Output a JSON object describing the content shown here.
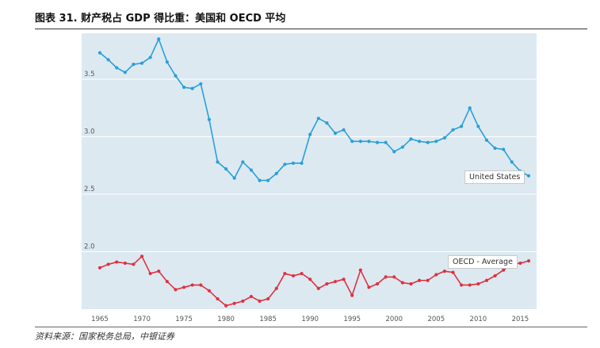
{
  "figure": {
    "title": "图表 31. 财产税占 GDP 得比重：美国和 OECD 平均",
    "source": "资料来源：国家税务总局，中银证券"
  },
  "chart_data": {
    "type": "line",
    "xlim": [
      1965,
      2016
    ],
    "ylim": [
      1.5,
      3.95
    ],
    "yticks": [
      2.0,
      2.5,
      3.0,
      3.5
    ],
    "ytick_labels": [
      "2.0",
      "2.5",
      "3.0",
      "3.5"
    ],
    "xticks": [
      1965,
      1970,
      1975,
      1980,
      1985,
      1990,
      1995,
      2000,
      2005,
      2010,
      2015
    ],
    "xtick_labels": [
      "1965",
      "1970",
      "1975",
      "1980",
      "1985",
      "1990",
      "1995",
      "2000",
      "2005",
      "2010",
      "2015"
    ],
    "grid": true,
    "x": [
      1965,
      1966,
      1967,
      1968,
      1969,
      1970,
      1971,
      1972,
      1973,
      1974,
      1975,
      1976,
      1977,
      1978,
      1979,
      1980,
      1981,
      1982,
      1983,
      1984,
      1985,
      1986,
      1987,
      1988,
      1989,
      1990,
      1991,
      1992,
      1993,
      1994,
      1995,
      1996,
      1997,
      1998,
      1999,
      2000,
      2001,
      2002,
      2003,
      2004,
      2005,
      2006,
      2007,
      2008,
      2009,
      2010,
      2011,
      2012,
      2013,
      2014,
      2015,
      2016
    ],
    "series": [
      {
        "name": "United States",
        "color": "#2a9fd8",
        "values": [
          3.73,
          3.67,
          3.6,
          3.56,
          3.63,
          3.64,
          3.69,
          3.85,
          3.65,
          3.53,
          3.43,
          3.42,
          3.46,
          3.15,
          2.78,
          2.72,
          2.64,
          2.78,
          2.71,
          2.62,
          2.62,
          2.68,
          2.76,
          2.77,
          2.77,
          3.02,
          3.16,
          3.12,
          3.03,
          3.06,
          2.96,
          2.96,
          2.96,
          2.95,
          2.95,
          2.87,
          2.91,
          2.98,
          2.96,
          2.95,
          2.96,
          2.99,
          3.06,
          3.09,
          3.25,
          3.09,
          2.97,
          2.9,
          2.89,
          2.78,
          2.7,
          2.66
        ]
      },
      {
        "name": "OECD - Average",
        "color": "#e03040",
        "values": [
          1.86,
          1.89,
          1.91,
          1.9,
          1.89,
          1.96,
          1.81,
          1.83,
          1.74,
          1.67,
          1.69,
          1.71,
          1.71,
          1.66,
          1.59,
          1.53,
          1.55,
          1.57,
          1.61,
          1.57,
          1.59,
          1.68,
          1.81,
          1.79,
          1.81,
          1.76,
          1.68,
          1.72,
          1.74,
          1.76,
          1.62,
          1.84,
          1.69,
          1.72,
          1.78,
          1.78,
          1.73,
          1.72,
          1.75,
          1.75,
          1.8,
          1.83,
          1.82,
          1.71,
          1.71,
          1.72,
          1.75,
          1.79,
          1.84,
          1.89,
          1.9,
          1.92
        ]
      }
    ]
  }
}
